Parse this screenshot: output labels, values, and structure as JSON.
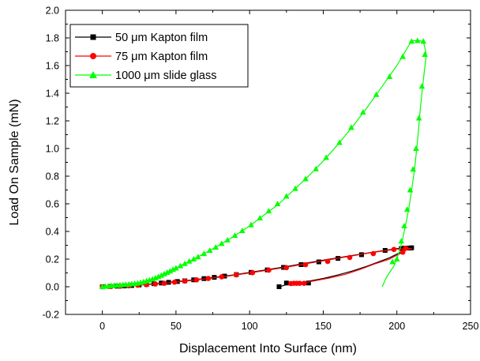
{
  "chart_data": {
    "type": "line",
    "xlabel": "Displacement Into Surface (nm)",
    "ylabel": "Load On Sample (mN)",
    "xlim": [
      -25,
      250
    ],
    "ylim": [
      -0.2,
      2.0
    ],
    "x_ticks": [
      "0",
      "50",
      "100",
      "150",
      "200",
      "250"
    ],
    "y_ticks": [
      "-0.2",
      "0.0",
      "0.2",
      "0.4",
      "0.6",
      "0.8",
      "1.0",
      "1.2",
      "1.4",
      "1.6",
      "1.8",
      "2.0"
    ],
    "legend_position": "top-left",
    "grid": false,
    "series": [
      {
        "name": "50 μm Kapton film",
        "color": "#000000",
        "marker": "square",
        "line": [
          [
            0,
            0
          ],
          [
            10,
            0.004
          ],
          [
            20,
            0.009
          ],
          [
            30,
            0.017
          ],
          [
            40,
            0.027
          ],
          [
            50,
            0.037
          ],
          [
            60,
            0.048
          ],
          [
            70,
            0.06
          ],
          [
            80,
            0.073
          ],
          [
            90,
            0.087
          ],
          [
            100,
            0.104
          ],
          [
            110,
            0.12
          ],
          [
            120,
            0.137
          ],
          [
            130,
            0.155
          ],
          [
            140,
            0.174
          ],
          [
            150,
            0.192
          ],
          [
            160,
            0.21
          ],
          [
            170,
            0.227
          ],
          [
            180,
            0.244
          ],
          [
            190,
            0.26
          ],
          [
            200,
            0.276
          ],
          [
            205,
            0.28
          ],
          [
            210,
            0.282
          ],
          [
            209,
            0.28
          ],
          [
            205,
            0.26
          ],
          [
            200,
            0.236
          ],
          [
            195,
            0.21
          ],
          [
            190,
            0.19
          ],
          [
            180,
            0.15
          ],
          [
            170,
            0.115
          ],
          [
            160,
            0.085
          ],
          [
            150,
            0.06
          ],
          [
            140,
            0.04
          ],
          [
            130,
            0.025
          ],
          [
            126,
            0.02
          ],
          [
            124,
            0.012
          ],
          [
            122,
            0.005
          ],
          [
            120,
            0.0
          ]
        ],
        "points": [
          [
            0,
            0
          ],
          [
            5,
            0.002
          ],
          [
            10,
            0.004
          ],
          [
            15,
            0.006
          ],
          [
            20,
            0.009
          ],
          [
            25,
            0.013
          ],
          [
            30,
            0.017
          ],
          [
            35,
            0.022
          ],
          [
            40,
            0.027
          ],
          [
            45,
            0.032
          ],
          [
            51,
            0.038
          ],
          [
            56,
            0.043
          ],
          [
            62,
            0.05
          ],
          [
            69,
            0.059
          ],
          [
            76,
            0.068
          ],
          [
            83,
            0.077
          ],
          [
            91,
            0.088
          ],
          [
            101,
            0.104
          ],
          [
            112,
            0.122
          ],
          [
            123,
            0.14
          ],
          [
            135,
            0.16
          ],
          [
            147,
            0.18
          ],
          [
            160,
            0.205
          ],
          [
            176,
            0.232
          ],
          [
            192,
            0.263
          ],
          [
            203,
            0.276
          ],
          [
            205,
            0.279
          ],
          [
            207,
            0.28
          ],
          [
            209,
            0.28
          ],
          [
            210,
            0.282
          ],
          [
            140,
            0.027
          ],
          [
            125,
            0.027
          ],
          [
            120,
            0.0
          ]
        ]
      },
      {
        "name": "75 μm Kapton film",
        "color": "#ff0000",
        "marker": "circle",
        "line": [
          [
            0,
            0
          ],
          [
            10,
            0.003
          ],
          [
            20,
            0.008
          ],
          [
            30,
            0.015
          ],
          [
            40,
            0.024
          ],
          [
            50,
            0.034
          ],
          [
            60,
            0.045
          ],
          [
            70,
            0.057
          ],
          [
            80,
            0.07
          ],
          [
            90,
            0.084
          ],
          [
            100,
            0.1
          ],
          [
            110,
            0.116
          ],
          [
            120,
            0.133
          ],
          [
            130,
            0.151
          ],
          [
            140,
            0.17
          ],
          [
            150,
            0.188
          ],
          [
            160,
            0.206
          ],
          [
            170,
            0.224
          ],
          [
            180,
            0.242
          ],
          [
            190,
            0.258
          ],
          [
            200,
            0.272
          ],
          [
            207,
            0.278
          ],
          [
            210,
            0.275
          ],
          [
            207,
            0.27
          ],
          [
            204,
            0.25
          ],
          [
            200,
            0.228
          ],
          [
            195,
            0.2
          ],
          [
            185,
            0.165
          ],
          [
            175,
            0.125
          ],
          [
            165,
            0.09
          ],
          [
            155,
            0.065
          ],
          [
            145,
            0.045
          ],
          [
            140,
            0.035
          ],
          [
            135,
            0.028
          ],
          [
            130,
            0.025
          ],
          [
            128,
            0.023
          ]
        ],
        "points": [
          [
            0,
            0
          ],
          [
            6,
            0.002
          ],
          [
            12,
            0.004
          ],
          [
            18,
            0.007
          ],
          [
            24,
            0.011
          ],
          [
            30,
            0.015
          ],
          [
            36,
            0.02
          ],
          [
            42,
            0.025
          ],
          [
            49,
            0.033
          ],
          [
            56,
            0.041
          ],
          [
            64,
            0.05
          ],
          [
            72,
            0.06
          ],
          [
            81,
            0.072
          ],
          [
            91,
            0.086
          ],
          [
            102,
            0.102
          ],
          [
            113,
            0.12
          ],
          [
            125,
            0.138
          ],
          [
            138,
            0.16
          ],
          [
            153,
            0.183
          ],
          [
            168,
            0.212
          ],
          [
            184,
            0.24
          ],
          [
            198,
            0.27
          ],
          [
            206,
            0.278
          ],
          [
            204,
            0.25
          ],
          [
            128,
            0.023
          ],
          [
            130,
            0.025
          ],
          [
            132,
            0.025
          ],
          [
            134,
            0.025
          ],
          [
            137,
            0.025
          ]
        ]
      },
      {
        "name": "1000 μm slide glass",
        "color": "#00ff00",
        "marker": "triangle",
        "line": [
          [
            0,
            0
          ],
          [
            10,
            0.01
          ],
          [
            20,
            0.02
          ],
          [
            25,
            0.027
          ],
          [
            30,
            0.04
          ],
          [
            35,
            0.06
          ],
          [
            40,
            0.085
          ],
          [
            50,
            0.135
          ],
          [
            60,
            0.19
          ],
          [
            70,
            0.245
          ],
          [
            80,
            0.305
          ],
          [
            90,
            0.37
          ],
          [
            100,
            0.44
          ],
          [
            110,
            0.52
          ],
          [
            120,
            0.6
          ],
          [
            130,
            0.7
          ],
          [
            140,
            0.8
          ],
          [
            150,
            0.91
          ],
          [
            160,
            1.03
          ],
          [
            170,
            1.16
          ],
          [
            180,
            1.3
          ],
          [
            190,
            1.45
          ],
          [
            200,
            1.6
          ],
          [
            205,
            1.69
          ],
          [
            210,
            1.78
          ],
          [
            213,
            1.78
          ],
          [
            215,
            1.78
          ],
          [
            218,
            1.775
          ],
          [
            220,
            1.68
          ],
          [
            218,
            1.5
          ],
          [
            216,
            1.3
          ],
          [
            214,
            1.05
          ],
          [
            212,
            0.85
          ],
          [
            210,
            0.7
          ],
          [
            208,
            0.56
          ],
          [
            206,
            0.45
          ],
          [
            204,
            0.35
          ],
          [
            202,
            0.27
          ],
          [
            200,
            0.2
          ],
          [
            198,
            0.15
          ],
          [
            196,
            0.12
          ],
          [
            193,
            0.07
          ],
          [
            190,
            0.0
          ]
        ],
        "points": [
          [
            0,
            0
          ],
          [
            2,
            0.003
          ],
          [
            4,
            0.005
          ],
          [
            6,
            0.007
          ],
          [
            8,
            0.009
          ],
          [
            10,
            0.01
          ],
          [
            12,
            0.012
          ],
          [
            14,
            0.014
          ],
          [
            16,
            0.016
          ],
          [
            18,
            0.018
          ],
          [
            20,
            0.02
          ],
          [
            22,
            0.023
          ],
          [
            24,
            0.026
          ],
          [
            26,
            0.03
          ],
          [
            28,
            0.036
          ],
          [
            30,
            0.042
          ],
          [
            32,
            0.048
          ],
          [
            34,
            0.055
          ],
          [
            36,
            0.063
          ],
          [
            38,
            0.072
          ],
          [
            40,
            0.082
          ],
          [
            42,
            0.092
          ],
          [
            44,
            0.103
          ],
          [
            46,
            0.113
          ],
          [
            48,
            0.124
          ],
          [
            50,
            0.134
          ],
          [
            53,
            0.151
          ],
          [
            56,
            0.167
          ],
          [
            59,
            0.184
          ],
          [
            62,
            0.2
          ],
          [
            65,
            0.216
          ],
          [
            69,
            0.239
          ],
          [
            73,
            0.262
          ],
          [
            77,
            0.286
          ],
          [
            81,
            0.312
          ],
          [
            85,
            0.338
          ],
          [
            90,
            0.371
          ],
          [
            95,
            0.405
          ],
          [
            101,
            0.448
          ],
          [
            107,
            0.497
          ],
          [
            113,
            0.548
          ],
          [
            119,
            0.6
          ],
          [
            125,
            0.655
          ],
          [
            131,
            0.71
          ],
          [
            138,
            0.78
          ],
          [
            145,
            0.852
          ],
          [
            152,
            0.934
          ],
          [
            161,
            1.043
          ],
          [
            169,
            1.152
          ],
          [
            177,
            1.262
          ],
          [
            186,
            1.39
          ],
          [
            195,
            1.52
          ],
          [
            204,
            1.665
          ],
          [
            210,
            1.775
          ],
          [
            214,
            1.78
          ],
          [
            218,
            1.775
          ],
          [
            219,
            1.68
          ],
          [
            217,
            1.45
          ],
          [
            215,
            1.22
          ],
          [
            213,
            1.0
          ],
          [
            211,
            0.85
          ],
          [
            209,
            0.7
          ],
          [
            207,
            0.56
          ],
          [
            205,
            0.44
          ],
          [
            203,
            0.33
          ],
          [
            200,
            0.2
          ],
          [
            197,
            0.18
          ]
        ]
      }
    ]
  }
}
